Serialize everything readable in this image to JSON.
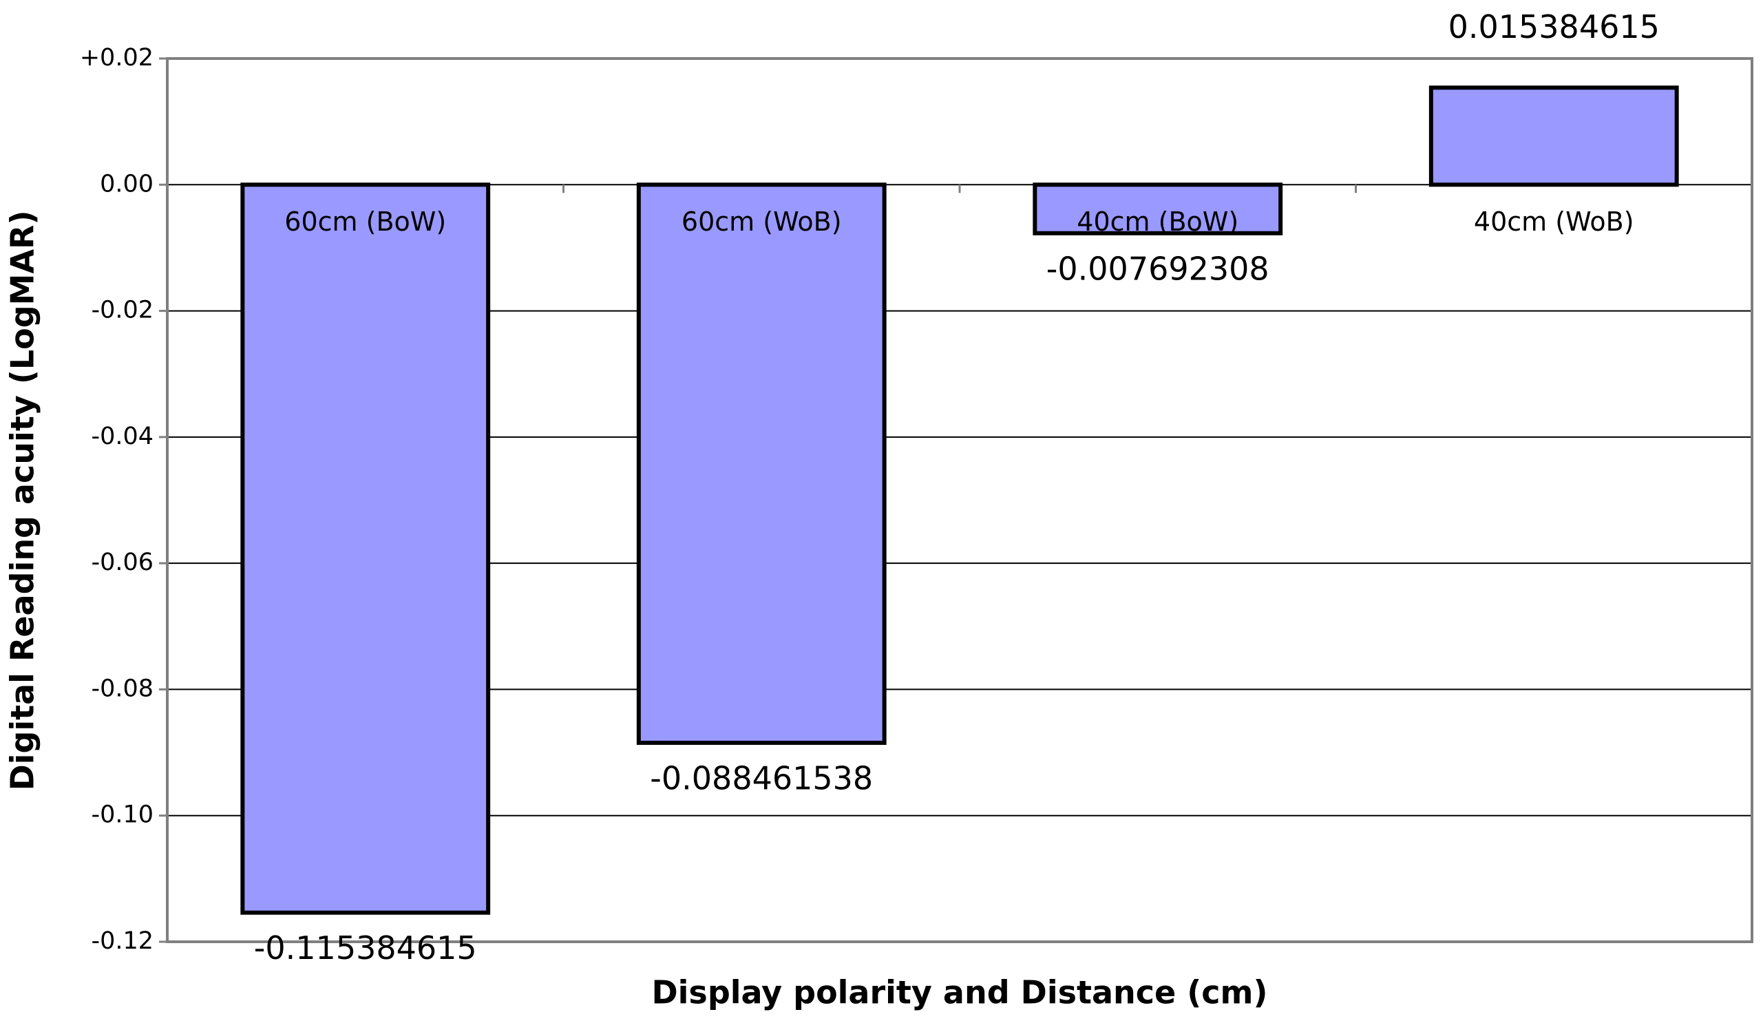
{
  "chart_data": {
    "type": "bar",
    "x_label": "Display polarity and Distance (cm)",
    "y_label": "Digital Reading acuity  (LogMAR)",
    "categories": [
      "60cm (BoW)",
      "60cm (WoB)",
      "40cm (BoW)",
      "40cm (WoB)"
    ],
    "values": [
      -0.115384615,
      -0.088461538,
      -0.007692308,
      0.015384615
    ],
    "color": "#9999ff",
    "ylim": [
      -0.12,
      0.02
    ],
    "yticks": [
      {
        "value": 0.02,
        "label": "+0.02"
      },
      {
        "value": 0,
        "label": "0.00"
      },
      -0.02,
      -0.04,
      -0.06,
      -0.08,
      {
        "value": -0.1,
        "label": "-0.10"
      },
      -0.12
    ],
    "grid": true
  }
}
